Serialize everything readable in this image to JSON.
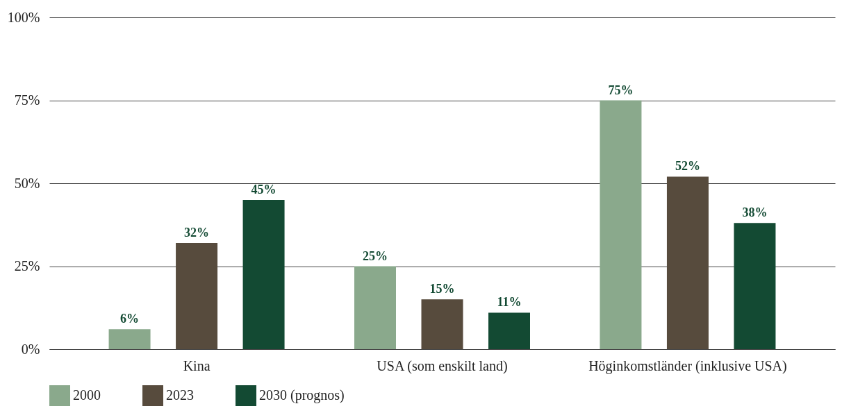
{
  "chart_data": {
    "type": "bar",
    "categories": [
      "Kina",
      "USA (som enskilt land)",
      "Höginkomstländer (inklusive USA)"
    ],
    "series": [
      {
        "name": "2000",
        "color": "#8aa98c",
        "values": [
          6,
          25,
          75
        ],
        "value_labels": [
          "6%",
          "25%",
          "75%"
        ]
      },
      {
        "name": "2023",
        "color": "#574b3d",
        "values": [
          32,
          15,
          52
        ],
        "value_labels": [
          "32%",
          "15%",
          "52%"
        ]
      },
      {
        "name": "2030 (prognos)",
        "color": "#134a33",
        "values": [
          45,
          11,
          38
        ],
        "value_labels": [
          "45%",
          "11%",
          "38%"
        ]
      }
    ],
    "ylim": [
      0,
      100
    ],
    "yticks": [
      {
        "value": 0,
        "label": "0%"
      },
      {
        "value": 25,
        "label": "25%"
      },
      {
        "value": 50,
        "label": "50%"
      },
      {
        "value": 75,
        "label": "75%"
      },
      {
        "value": 100,
        "label": "100%"
      }
    ],
    "grid": "y",
    "legend": "bottom"
  }
}
